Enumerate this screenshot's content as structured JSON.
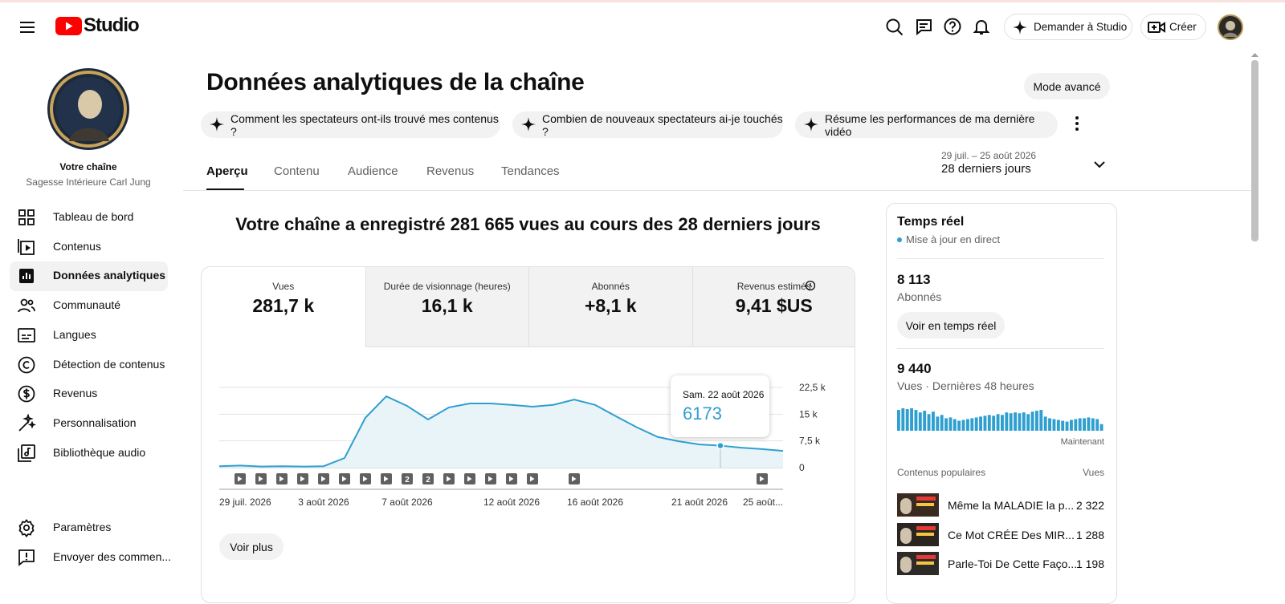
{
  "header": {
    "brand": "Studio",
    "ask_button": "Demander à Studio",
    "create_button": "Créer"
  },
  "sidebar": {
    "channel_label": "Votre chaîne",
    "channel_name": "Sagesse Intérieure Carl Jung",
    "nav": [
      "Tableau de bord",
      "Contenus",
      "Données analytiques",
      "Communauté",
      "Langues",
      "Détection de contenus",
      "Revenus",
      "Personnalisation",
      "Bibliothèque audio"
    ],
    "bottom_nav": [
      "Paramètres",
      "Envoyer des commen..."
    ]
  },
  "page": {
    "title": "Données analytiques de la chaîne",
    "advanced_mode": "Mode avancé",
    "suggestions": [
      "Comment les spectateurs ont-ils trouvé mes contenus ?",
      "Combien de nouveaux spectateurs ai-je touchés ?",
      "Résume les performances de ma dernière vidéo"
    ],
    "tabs": [
      "Aperçu",
      "Contenu",
      "Audience",
      "Revenus",
      "Tendances"
    ],
    "date_range": "29 juil. – 25 août 2026",
    "period": "28 derniers jours",
    "headline": "Votre chaîne a enregistré 281 665 vues au cours des 28 derniers jours",
    "metrics": [
      {
        "label": "Vues",
        "value": "281,7 k"
      },
      {
        "label": "Durée de visionnage (heures)",
        "value": "16,1 k"
      },
      {
        "label": "Abonnés",
        "value": "+8,1 k"
      },
      {
        "label": "Revenus estimés",
        "value": "9,41 $US"
      }
    ],
    "see_more": "Voir plus"
  },
  "chart_data": {
    "type": "line",
    "color": "#2f9fd0",
    "categories": [
      "29 juil. 2026",
      null,
      null,
      null,
      null,
      "3 août 2026",
      null,
      null,
      null,
      "7 août 2026",
      null,
      null,
      null,
      null,
      "12 août 2026",
      null,
      null,
      null,
      "16 août 2026",
      null,
      null,
      null,
      null,
      "21 août 2026",
      null,
      null,
      null,
      "25 août..."
    ],
    "values": [
      400,
      600,
      300,
      400,
      300,
      400,
      2700,
      14000,
      20000,
      17300,
      13500,
      16900,
      18000,
      18000,
      17600,
      17100,
      17600,
      19100,
      17600,
      14400,
      11300,
      8600,
      7400,
      6500,
      6173,
      5600,
      5200,
      4700
    ],
    "uploads": [
      0,
      1,
      1,
      1,
      1,
      1,
      1,
      1,
      1,
      2,
      2,
      1,
      1,
      1,
      1,
      1,
      0,
      1,
      0,
      0,
      0,
      0,
      0,
      0,
      0,
      0,
      1,
      0
    ],
    "ylim": [
      0,
      22500
    ],
    "yticks": [
      0,
      {
        "value": 7500,
        "label": "7,5 k"
      },
      {
        "value": 15000,
        "label": "15 k"
      },
      {
        "value": 22500,
        "label": "22,5 k"
      }
    ],
    "grid": true,
    "tooltip_title": "Sam. 22 août 2026"
  },
  "realtime": {
    "title": "Temps réel",
    "status": "Mise à jour en direct",
    "subscribers": "8 113",
    "subscribers_label": "Abonnés",
    "button": "Voir en temps réel",
    "views": "9 440",
    "views_label": "Vues · Dernières 48 heures",
    "hourly_views": [
      250,
      270,
      260,
      270,
      250,
      220,
      240,
      200,
      230,
      170,
      190,
      150,
      160,
      140,
      120,
      130,
      140,
      150,
      160,
      170,
      180,
      190,
      180,
      200,
      190,
      220,
      210,
      220,
      210,
      220,
      200,
      230,
      240,
      250,
      170,
      150,
      140,
      130,
      120,
      110,
      130,
      140,
      150,
      150,
      160,
      150,
      140,
      80
    ],
    "now_label": "Maintenant",
    "popular_label": "Contenus populaires",
    "views_column": "Vues",
    "popular": [
      {
        "title": "Même la MALADIE la p...",
        "views": "2 322"
      },
      {
        "title": "Ce Mot CRÉE Des MIR...",
        "views": "1 288"
      },
      {
        "title": "Parle-Toi De Cette Faço...",
        "views": "1 198"
      }
    ]
  }
}
